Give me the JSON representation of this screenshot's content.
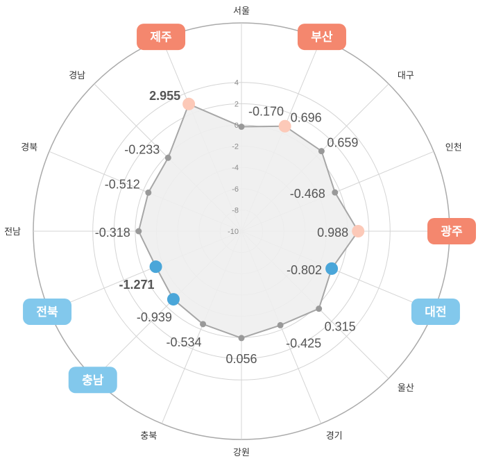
{
  "chart_data": {
    "type": "radar",
    "title": "",
    "rlim": [
      -10,
      4
    ],
    "ticks": [
      4,
      2,
      0,
      -2,
      -4,
      -6,
      -8,
      -10
    ],
    "categories": [
      "서울",
      "부산",
      "대구",
      "인천",
      "광주",
      "대전",
      "울산",
      "경기",
      "강원",
      "충북",
      "충남",
      "전북",
      "전남",
      "경북",
      "경남",
      "제주"
    ],
    "values": [
      -0.17,
      0.696,
      0.659,
      -0.468,
      0.988,
      -0.802,
      0.315,
      -0.425,
      0.056,
      -0.534,
      -0.939,
      -1.271,
      -0.318,
      -0.512,
      -0.233,
      2.955
    ],
    "value_labels": [
      "-0.170",
      "0.696",
      "0.659",
      "-0.468",
      "0.988",
      "-0.802",
      "0.315",
      "-0.425",
      "0.056",
      "-0.534",
      "-0.939",
      "-1.271",
      "-0.318",
      "-0.512",
      "-0.233",
      "2.955"
    ],
    "highlight_high": [
      "부산",
      "광주",
      "제주"
    ],
    "highlight_low": [
      "대전",
      "충남",
      "전북"
    ],
    "grid": true,
    "legend": "none"
  },
  "colors": {
    "area_fill": "#eeeeee",
    "line": "#a6a6a6",
    "point": "#999999",
    "grid": "#d4d4d4",
    "outer_ring": "#aaaaaa",
    "high_badge": "#f4876e",
    "high_point": "#fcc9b8",
    "high_text": "#7a1f12",
    "max_text": "#b5533b",
    "low_badge": "#82c8ec",
    "low_point": "#4aa6d9",
    "low_text": "#2b2f7c",
    "min_text": "#2a9fd8"
  }
}
